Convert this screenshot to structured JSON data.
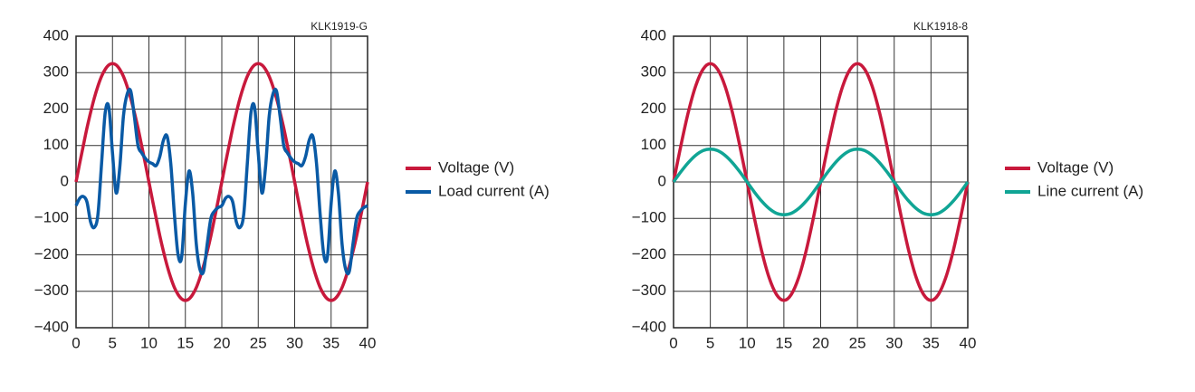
{
  "chart_data": [
    {
      "type": "line",
      "annotation": "KLK1919-G",
      "x": [
        0,
        0.5,
        1,
        1.5,
        2,
        2.5,
        3,
        3.5,
        4,
        4.5,
        5,
        5.5,
        6,
        6.5,
        7,
        7.5,
        8,
        8.5,
        9,
        9.5,
        10,
        10.5,
        11,
        11.5,
        12,
        12.5,
        13,
        13.5,
        14,
        14.5,
        15,
        15.5,
        16,
        16.5,
        17,
        17.5,
        18,
        18.5,
        19,
        19.5,
        20,
        20.5,
        21,
        21.5,
        22,
        22.5,
        23,
        23.5,
        24,
        24.5,
        25,
        25.5,
        26,
        26.5,
        27,
        27.5,
        28,
        28.5,
        29,
        29.5,
        30,
        30.5,
        31,
        31.5,
        32,
        32.5,
        33,
        33.5,
        34,
        34.5,
        35,
        35.5,
        36,
        36.5,
        37,
        37.5,
        38,
        38.5,
        39,
        39.5,
        40
      ],
      "xlim": [
        0,
        40
      ],
      "xticks": [
        0,
        5,
        10,
        15,
        20,
        25,
        30,
        35,
        40
      ],
      "ylim": [
        -400,
        400
      ],
      "yticks": [
        {
          "value": -400,
          "label": "−400"
        },
        {
          "value": -300,
          "label": "−300"
        },
        {
          "value": -200,
          "label": "−200"
        },
        {
          "value": -100,
          "label": "−100"
        },
        0,
        100,
        200,
        300,
        400
      ],
      "grid": true,
      "series": [
        {
          "name": "Voltage (V)",
          "color": "#c8193c",
          "values": [
            0,
            51,
            100,
            148,
            191,
            230,
            263,
            290,
            309,
            321,
            325,
            321,
            309,
            290,
            263,
            230,
            191,
            148,
            100,
            51,
            0,
            -51,
            -100,
            -148,
            -191,
            -230,
            -263,
            -290,
            -309,
            -321,
            -325,
            -321,
            -309,
            -290,
            -263,
            -230,
            -191,
            -148,
            -100,
            -51,
            0,
            51,
            100,
            148,
            191,
            230,
            263,
            290,
            309,
            321,
            325,
            321,
            309,
            290,
            263,
            230,
            191,
            148,
            100,
            51,
            0,
            -51,
            -100,
            -148,
            -191,
            -230,
            -263,
            -290,
            -309,
            -321,
            -325,
            -321,
            -309,
            -290,
            -263,
            -230,
            -191,
            -148,
            -100,
            -51,
            0
          ]
        },
        {
          "name": "Load current (A)",
          "color": "#0a5aa5",
          "values": [
            -65,
            -45,
            -40,
            -55,
            -110,
            -125,
            -90,
            50,
            190,
            205,
            80,
            -30,
            40,
            180,
            240,
            250,
            180,
            100,
            80,
            65,
            55,
            50,
            45,
            70,
            115,
            125,
            50,
            -90,
            -200,
            -205,
            -60,
            30,
            -30,
            -170,
            -240,
            -245,
            -170,
            -100,
            -80,
            -70,
            -65,
            -45,
            -40,
            -55,
            -110,
            -125,
            -90,
            50,
            190,
            205,
            80,
            -30,
            40,
            180,
            240,
            250,
            180,
            100,
            80,
            65,
            55,
            50,
            45,
            70,
            115,
            125,
            50,
            -90,
            -200,
            -205,
            -60,
            30,
            -30,
            -170,
            -240,
            -245,
            -170,
            -100,
            -80,
            -70,
            -65
          ]
        }
      ]
    },
    {
      "type": "line",
      "annotation": "KLK1918-8",
      "x": [
        0,
        1,
        2,
        3,
        4,
        5,
        6,
        7,
        8,
        9,
        10,
        11,
        12,
        13,
        14,
        15,
        16,
        17,
        18,
        19,
        20,
        21,
        22,
        23,
        24,
        25,
        26,
        27,
        28,
        29,
        30,
        31,
        32,
        33,
        34,
        35,
        36,
        37,
        38,
        39,
        40
      ],
      "xlim": [
        0,
        40
      ],
      "xticks": [
        0,
        5,
        10,
        15,
        20,
        25,
        30,
        35,
        40
      ],
      "ylim": [
        -400,
        400
      ],
      "yticks": [
        {
          "value": -400,
          "label": "−400"
        },
        {
          "value": -300,
          "label": "−300"
        },
        {
          "value": -200,
          "label": "−200"
        },
        {
          "value": -100,
          "label": "−100"
        },
        0,
        100,
        200,
        300,
        400
      ],
      "grid": true,
      "series": [
        {
          "name": "Voltage (V)",
          "color": "#c8193c",
          "values": [
            0,
            100,
            191,
            263,
            309,
            325,
            309,
            263,
            191,
            100,
            0,
            -100,
            -191,
            -263,
            -309,
            -325,
            -309,
            -263,
            -191,
            -100,
            0,
            100,
            191,
            263,
            309,
            325,
            309,
            263,
            191,
            100,
            0,
            -100,
            -191,
            -263,
            -309,
            -325,
            -309,
            -263,
            -191,
            -100,
            0
          ]
        },
        {
          "name": "Line current (A)",
          "color": "#10a595",
          "values": [
            0,
            28,
            53,
            73,
            86,
            90,
            86,
            73,
            53,
            28,
            0,
            -28,
            -53,
            -73,
            -86,
            -90,
            -86,
            -73,
            -53,
            -28,
            0,
            28,
            53,
            73,
            86,
            90,
            86,
            73,
            53,
            28,
            0,
            -28,
            -53,
            -73,
            -86,
            -90,
            -86,
            -73,
            -53,
            -28,
            0
          ]
        }
      ]
    }
  ]
}
